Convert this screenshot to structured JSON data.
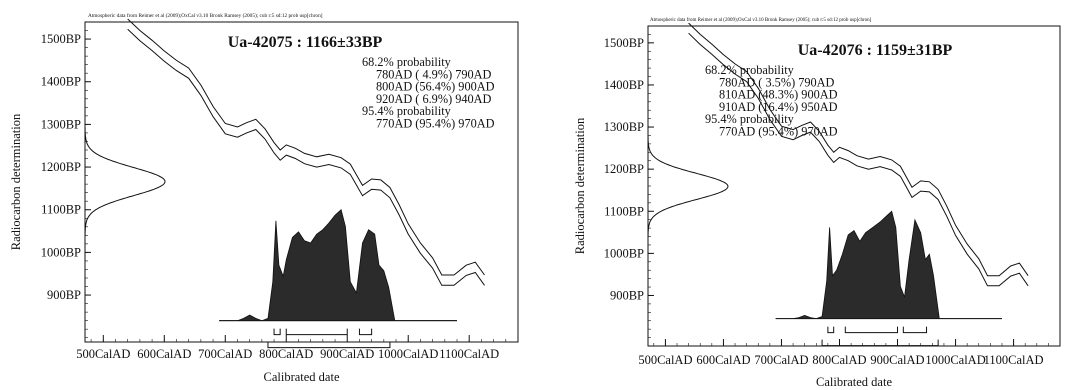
{
  "chart_data": [
    {
      "type": "area",
      "credit": "Atmospheric data from Reimer et al (2009);OxCal v3.10 Bronk Ramsey (2005); cub r:5 sd:12 prob usp[chron]",
      "title": "Ua-42075 : 1166±33BP",
      "xlabel": "Calibrated date",
      "ylabel": "Radiocarbon determination",
      "x_ticks": [
        "500CalAD",
        "600CalAD",
        "700CalAD",
        "800CalAD",
        "900CalAD",
        "1000CalAD",
        "1100CalAD"
      ],
      "y_ticks": [
        "1500BP",
        "1400BP",
        "1300BP",
        "1200BP",
        "1100BP",
        "1000BP",
        "900BP"
      ],
      "xlim": [
        470,
        1180
      ],
      "ylim": [
        790,
        1540
      ],
      "measurement": {
        "bp": 1166,
        "error": 33
      },
      "legend_lines": [
        "68.2% probability",
        "780AD ( 4.9%) 790AD",
        "800AD (56.4%) 900AD",
        "920AD ( 6.9%) 940AD",
        "95.4% probability",
        "770AD (95.4%) 970AD"
      ],
      "ranges_68": [
        [
          780,
          790
        ],
        [
          800,
          900
        ],
        [
          920,
          940
        ]
      ],
      "ranges_95": [
        [
          770,
          970
        ]
      ],
      "calibration_curve": [
        [
          540,
          1535
        ],
        [
          560,
          1508
        ],
        [
          580,
          1485
        ],
        [
          600,
          1460
        ],
        [
          620,
          1438
        ],
        [
          640,
          1420
        ],
        [
          660,
          1380
        ],
        [
          680,
          1330
        ],
        [
          700,
          1290
        ],
        [
          720,
          1282
        ],
        [
          735,
          1292
        ],
        [
          750,
          1300
        ],
        [
          765,
          1278
        ],
        [
          780,
          1245
        ],
        [
          790,
          1228
        ],
        [
          800,
          1240
        ],
        [
          815,
          1232
        ],
        [
          830,
          1220
        ],
        [
          850,
          1212
        ],
        [
          870,
          1218
        ],
        [
          890,
          1210
        ],
        [
          905,
          1195
        ],
        [
          915,
          1170
        ],
        [
          925,
          1145
        ],
        [
          940,
          1160
        ],
        [
          955,
          1158
        ],
        [
          970,
          1140
        ],
        [
          985,
          1100
        ],
        [
          1000,
          1055
        ],
        [
          1020,
          1010
        ],
        [
          1040,
          975
        ],
        [
          1055,
          935
        ],
        [
          1075,
          935
        ],
        [
          1095,
          958
        ],
        [
          1110,
          965
        ],
        [
          1125,
          935
        ]
      ],
      "curve_halfwidth": 12,
      "calibrated_distribution": [
        [
          690,
          0
        ],
        [
          720,
          0
        ],
        [
          730,
          0.02
        ],
        [
          740,
          0.05
        ],
        [
          750,
          0.02
        ],
        [
          760,
          0
        ],
        [
          770,
          0.02
        ],
        [
          778,
          0.35
        ],
        [
          783,
          0.9
        ],
        [
          788,
          0.5
        ],
        [
          795,
          0.4
        ],
        [
          800,
          0.55
        ],
        [
          810,
          0.75
        ],
        [
          820,
          0.8
        ],
        [
          830,
          0.72
        ],
        [
          840,
          0.7
        ],
        [
          850,
          0.78
        ],
        [
          860,
          0.82
        ],
        [
          870,
          0.88
        ],
        [
          880,
          0.95
        ],
        [
          890,
          1.0
        ],
        [
          897,
          0.85
        ],
        [
          905,
          0.35
        ],
        [
          915,
          0.25
        ],
        [
          925,
          0.7
        ],
        [
          935,
          0.82
        ],
        [
          945,
          0.78
        ],
        [
          952,
          0.5
        ],
        [
          960,
          0.45
        ],
        [
          968,
          0.3
        ],
        [
          978,
          0
        ],
        [
          1080,
          0
        ]
      ],
      "dist_baseline_y": 840,
      "dist_peak_y": 1100
    },
    {
      "type": "area",
      "credit": "Atmospheric data from Reimer et al (2009);OxCal v3.10 Bronk Ramsey (2005); cub r:5 sd:12 prob usp[chron]",
      "title": "Ua-42076 : 1159±31BP",
      "xlabel": "Calibrated date",
      "ylabel": "Radiocarbon determination",
      "x_ticks": [
        "500CalAD",
        "600CalAD",
        "700CalAD",
        "800CalAD",
        "900CalAD",
        "1000CalAD",
        "1100CalAD"
      ],
      "y_ticks": [
        "1500BP",
        "1400BP",
        "1300BP",
        "1200BP",
        "1100BP",
        "1000BP",
        "900BP"
      ],
      "xlim": [
        470,
        1180
      ],
      "ylim": [
        780,
        1540
      ],
      "measurement": {
        "bp": 1159,
        "error": 31
      },
      "legend_lines": [
        "68.2% probability",
        "780AD ( 3.5%) 790AD",
        "810AD (48.3%) 900AD",
        "910AD (16.4%) 950AD",
        "95.4% probability",
        "770AD (95.4%) 970AD"
      ],
      "ranges_68": [
        [
          780,
          790
        ],
        [
          810,
          900
        ],
        [
          910,
          950
        ]
      ],
      "ranges_95": [
        [
          770,
          970
        ]
      ],
      "calibration_curve": [
        [
          540,
          1535
        ],
        [
          560,
          1508
        ],
        [
          580,
          1485
        ],
        [
          600,
          1460
        ],
        [
          620,
          1438
        ],
        [
          640,
          1420
        ],
        [
          660,
          1380
        ],
        [
          680,
          1330
        ],
        [
          700,
          1290
        ],
        [
          720,
          1282
        ],
        [
          735,
          1292
        ],
        [
          750,
          1300
        ],
        [
          765,
          1278
        ],
        [
          780,
          1245
        ],
        [
          790,
          1228
        ],
        [
          800,
          1240
        ],
        [
          815,
          1232
        ],
        [
          830,
          1220
        ],
        [
          850,
          1212
        ],
        [
          870,
          1218
        ],
        [
          890,
          1210
        ],
        [
          905,
          1195
        ],
        [
          915,
          1170
        ],
        [
          925,
          1145
        ],
        [
          940,
          1160
        ],
        [
          955,
          1158
        ],
        [
          970,
          1140
        ],
        [
          985,
          1100
        ],
        [
          1000,
          1055
        ],
        [
          1020,
          1010
        ],
        [
          1040,
          975
        ],
        [
          1055,
          935
        ],
        [
          1075,
          935
        ],
        [
          1095,
          958
        ],
        [
          1110,
          965
        ],
        [
          1125,
          935
        ]
      ],
      "curve_halfwidth": 12,
      "calibrated_distribution": [
        [
          690,
          0
        ],
        [
          720,
          0
        ],
        [
          730,
          0.01
        ],
        [
          740,
          0.03
        ],
        [
          750,
          0.01
        ],
        [
          760,
          0
        ],
        [
          770,
          0.02
        ],
        [
          778,
          0.35
        ],
        [
          783,
          0.85
        ],
        [
          788,
          0.4
        ],
        [
          795,
          0.45
        ],
        [
          805,
          0.6
        ],
        [
          815,
          0.78
        ],
        [
          825,
          0.82
        ],
        [
          835,
          0.72
        ],
        [
          845,
          0.8
        ],
        [
          860,
          0.86
        ],
        [
          870,
          0.9
        ],
        [
          880,
          0.95
        ],
        [
          890,
          1.0
        ],
        [
          897,
          0.85
        ],
        [
          905,
          0.3
        ],
        [
          912,
          0.2
        ],
        [
          920,
          0.55
        ],
        [
          930,
          0.92
        ],
        [
          940,
          0.8
        ],
        [
          948,
          0.55
        ],
        [
          955,
          0.6
        ],
        [
          962,
          0.4
        ],
        [
          972,
          0
        ],
        [
          1080,
          0
        ]
      ],
      "dist_baseline_y": 845,
      "dist_peak_y": 1100
    }
  ]
}
